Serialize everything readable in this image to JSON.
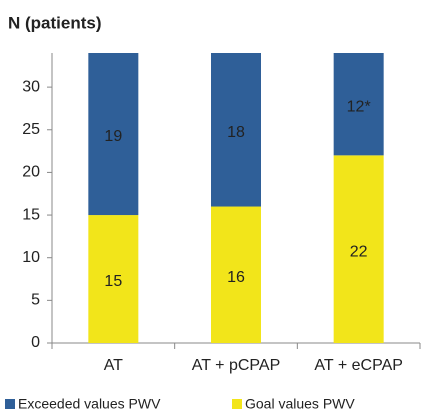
{
  "chart_data": {
    "type": "bar",
    "stacked": true,
    "title": "N (patients)",
    "categories": [
      "AT",
      "AT + pCPAP",
      "AT + eCPAP"
    ],
    "series": [
      {
        "name": "Exceeded values PWV",
        "color": "#2f5f98",
        "values": [
          19,
          18,
          12
        ],
        "value_labels": [
          "19",
          "18",
          "12*"
        ]
      },
      {
        "name": "Goal values PWV",
        "color": "#f2e51a",
        "values": [
          15,
          16,
          22
        ]
      }
    ],
    "ylim": [
      0,
      34
    ],
    "yticks": [
      0,
      5,
      10,
      15,
      20,
      25,
      30
    ],
    "grid": false,
    "legend": "bottom"
  }
}
